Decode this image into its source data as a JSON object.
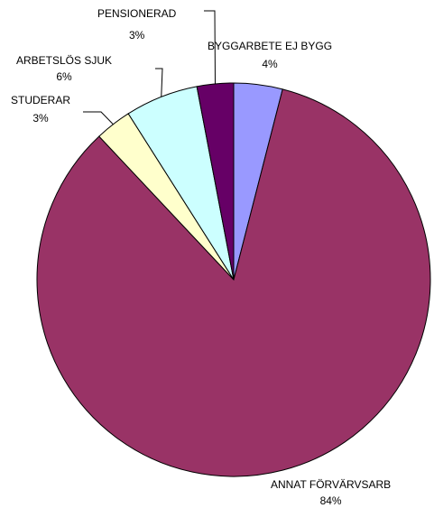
{
  "chart_data": {
    "type": "pie",
    "categories": [
      "BYGGARBETE EJ BYGG",
      "ANNAT FÖRVÄRVSARB",
      "STUDERAR",
      "ARBETSLÖS SJUK",
      "PENSIONERAD"
    ],
    "values": [
      4,
      84,
      3,
      6,
      3
    ],
    "value_labels": [
      "4%",
      "84%",
      "3%",
      "6%",
      "3%"
    ],
    "colors": [
      "#9999ff",
      "#993366",
      "#ffffcc",
      "#ccffff",
      "#660066"
    ]
  }
}
